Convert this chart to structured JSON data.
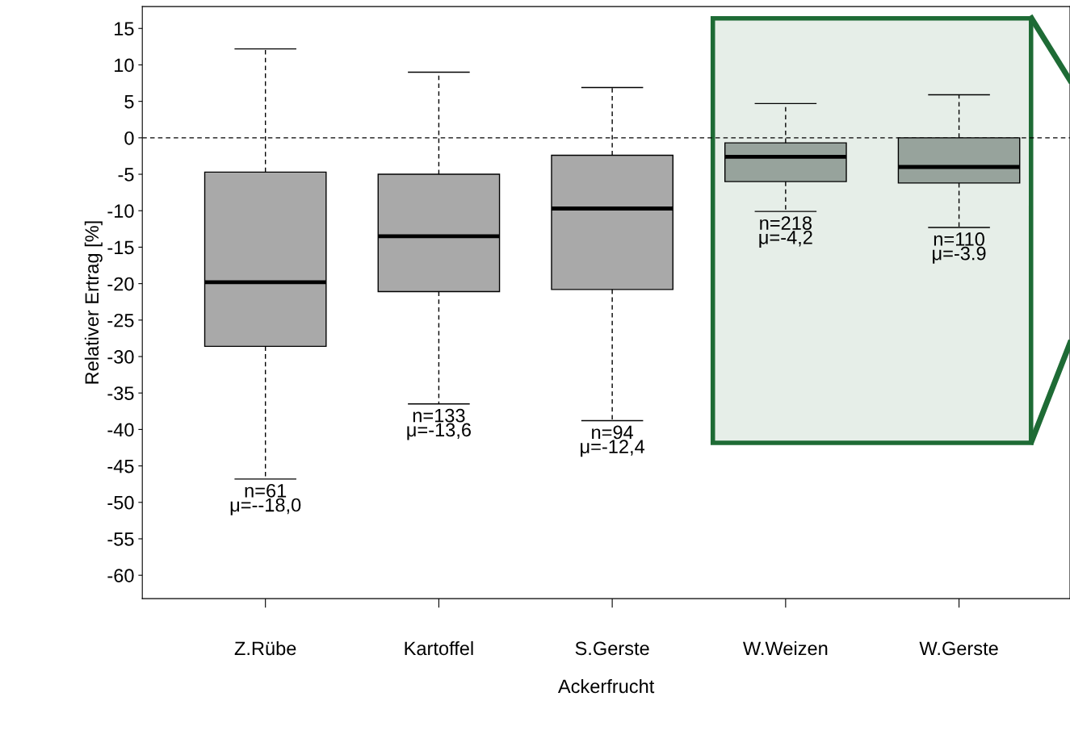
{
  "chart_data": {
    "type": "box",
    "xlabel": "Ackerfrucht",
    "ylabel": "Relativer Ertrag [%]",
    "categories": [
      "Z.Rübe",
      "Kartoffel",
      "S.Gerste",
      "W.Weizen",
      "W.Gerste"
    ],
    "colors": [
      "#a9a9a9",
      "#a9a9a9",
      "#a9a9a9",
      "#97a39c",
      "#97a39c"
    ],
    "boxes": [
      {
        "low": -46.8,
        "q1": -28.6,
        "median": -19.8,
        "q3": -4.7,
        "high": 12.2
      },
      {
        "low": -36.5,
        "q1": -21.1,
        "median": -13.5,
        "q3": -5.0,
        "high": 9.0
      },
      {
        "low": -38.8,
        "q1": -20.8,
        "median": -9.7,
        "q3": -2.4,
        "high": 6.9
      },
      {
        "low": -10.1,
        "q1": -6.0,
        "median": -2.6,
        "q3": -0.7,
        "high": 4.7
      },
      {
        "low": -12.3,
        "q1": -6.2,
        "median": -4.0,
        "q3": 0,
        "high": 5.9
      }
    ],
    "ylim": [
      -63.2,
      18
    ],
    "yticks": [
      15,
      10,
      5,
      0,
      -5,
      -10,
      -15,
      -20,
      -25,
      -30,
      -35,
      -40,
      -45,
      -50,
      -55,
      -60
    ],
    "ref_lines": [
      {
        "axis": "y",
        "value": 0,
        "line_style": "dashed",
        "color": "#000000"
      }
    ],
    "annotations": [
      {
        "text": "n=61\nμ=--18,0",
        "x": "Z.Rübe",
        "y": -46.8
      },
      {
        "text": "n=133\nμ=-13,6",
        "x": "Kartoffel",
        "y": -36.5
      },
      {
        "text": "n=94\nμ=-12,4",
        "x": "S.Gerste",
        "y": -38.8
      },
      {
        "text": "n=218\nμ=-4,2",
        "x": "W.Weizen",
        "y": -10.1
      },
      {
        "text": "n=110\nμ=-3.9",
        "x": "W.Gerste",
        "y": -12.3
      }
    ],
    "grid": false
  }
}
